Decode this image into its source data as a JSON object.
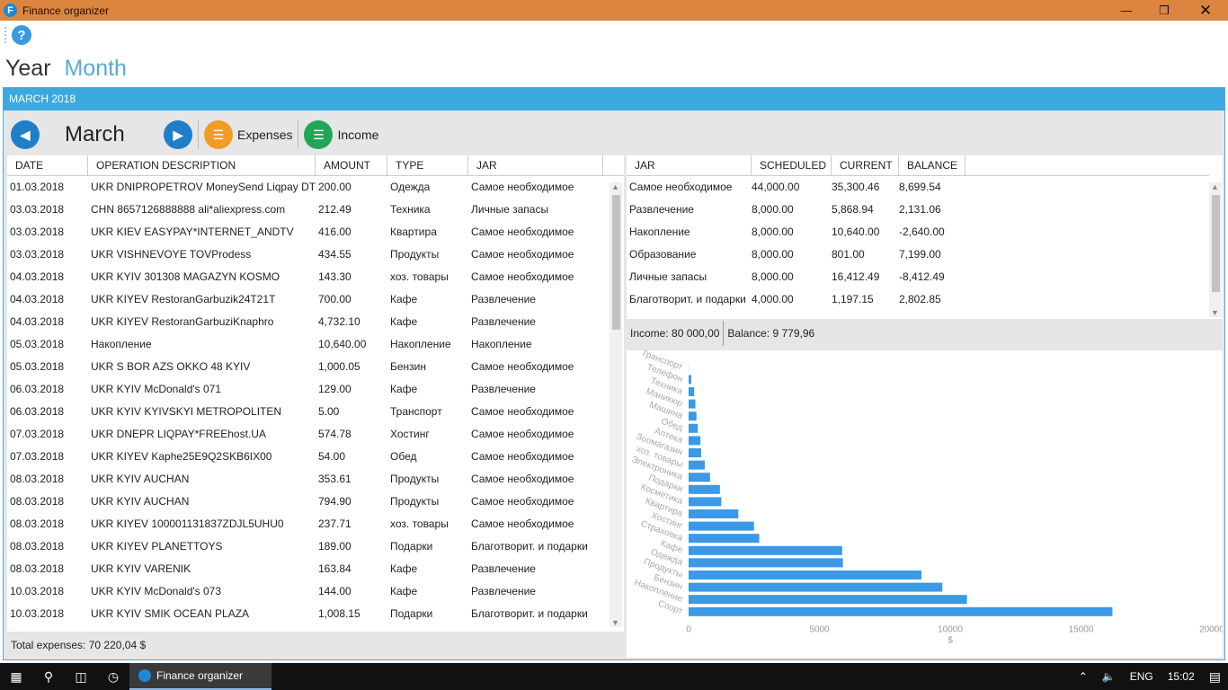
{
  "window": {
    "title": "Finance organizer"
  },
  "view_tabs": {
    "year": "Year",
    "month": "Month"
  },
  "panel_title": "MARCH 2018",
  "toolbar": {
    "month": "March",
    "expenses": "Expenses",
    "income": "Income"
  },
  "operations": {
    "headers": [
      "DATE",
      "OPERATION DESCRIPTION",
      "AMOUNT",
      "TYPE",
      "JAR"
    ],
    "rows": [
      [
        "01.03.2018",
        "UKR DNIPROPETROV MoneySend Liqpay DT",
        "200.00",
        "Одежда",
        "Самое необходимое"
      ],
      [
        "03.03.2018",
        "CHN 8657126888888 ali*aliexpress.com",
        "212.49",
        "Техника",
        "Личные запасы"
      ],
      [
        "03.03.2018",
        "UKR KIEV EASYPAY*INTERNET_ANDTV",
        "416.00",
        "Квартира",
        "Самое необходимое"
      ],
      [
        "03.03.2018",
        "UKR VISHNEVOYE TOVProdess",
        "434.55",
        "Продукты",
        "Самое необходимое"
      ],
      [
        "04.03.2018",
        "UKR KYIV 301308 MAGAZYN KOSMO",
        "143.30",
        "хоз. товары",
        "Самое необходимое"
      ],
      [
        "04.03.2018",
        "UKR KIYEV RestoranGarbuzik24T21T",
        "700.00",
        "Кафе",
        "Развлечение"
      ],
      [
        "04.03.2018",
        "UKR KIYEV RestoranGarbuziKnaphro",
        "4,732.10",
        "Кафе",
        "Развлечение"
      ],
      [
        "05.03.2018",
        "Накопление",
        "10,640.00",
        "Накопление",
        "Накопление"
      ],
      [
        "05.03.2018",
        "UKR S BOR AZS OKKO 48 KYIV",
        "1,000.05",
        "Бензин",
        "Самое необходимое"
      ],
      [
        "06.03.2018",
        "UKR KYIV McDonald's 071",
        "129.00",
        "Кафе",
        "Развлечение"
      ],
      [
        "06.03.2018",
        "UKR KYIV KYIVSKYI METROPOLITEN",
        "5.00",
        "Транспорт",
        "Самое необходимое"
      ],
      [
        "07.03.2018",
        "UKR DNEPR LIQPAY*FREEhost.UA",
        "574.78",
        "Хостинг",
        "Самое необходимое"
      ],
      [
        "07.03.2018",
        "UKR KIYEV Kaphe25E9Q2SKB6IX00",
        "54.00",
        "Обед",
        "Самое необходимое"
      ],
      [
        "08.03.2018",
        "UKR KYIV AUCHAN",
        "353.61",
        "Продукты",
        "Самое необходимое"
      ],
      [
        "08.03.2018",
        "UKR KYIV AUCHAN",
        "794.90",
        "Продукты",
        "Самое необходимое"
      ],
      [
        "08.03.2018",
        "UKR KIYEV 100001131837ZDJL5UHU0",
        "237.71",
        "хоз. товары",
        "Самое необходимое"
      ],
      [
        "08.03.2018",
        "UKR KIYEV PLANETTOYS",
        "189.00",
        "Подарки",
        "Благотворит. и подарки"
      ],
      [
        "08.03.2018",
        "UKR KYIV VARENIK",
        "163.84",
        "Кафе",
        "Развлечение"
      ],
      [
        "10.03.2018",
        "UKR KYIV McDonald's 073",
        "144.00",
        "Кафе",
        "Развлечение"
      ],
      [
        "10.03.2018",
        "UKR KYIV SMIK OCEAN PLAZA",
        "1,008.15",
        "Подарки",
        "Благотворит. и подарки"
      ]
    ],
    "total_label": "Total expenses:",
    "total_value": "70 220,04",
    "total_currency": "$"
  },
  "jars": {
    "headers": [
      "JAR",
      "SCHEDULED",
      "CURRENT",
      "BALANCE"
    ],
    "rows": [
      [
        "Самое необходимое",
        "44,000.00",
        "35,300.46",
        "8,699.54"
      ],
      [
        "Развлечение",
        "8,000.00",
        "5,868.94",
        "2,131.06"
      ],
      [
        "Накопление",
        "8,000.00",
        "10,640.00",
        "-2,640.00"
      ],
      [
        "Образование",
        "8,000.00",
        "801.00",
        "7,199.00"
      ],
      [
        "Личные запасы",
        "8,000.00",
        "16,412.49",
        "-8,412.49"
      ],
      [
        "Благотворит. и подарки",
        "4,000.00",
        "1,197.15",
        "2,802.85"
      ]
    ],
    "income_label": "Income:",
    "income_value": "80 000,00",
    "balance_label": "Balance:",
    "balance_value": "9 779,96"
  },
  "chart_data": {
    "type": "bar",
    "orientation": "horizontal",
    "categories": [
      "Транспорт",
      "Телефон",
      "Техника",
      "Маникюр",
      "Машина",
      "Обед",
      "Аптека",
      "Зоомагазин",
      "хоз. товары",
      "Электроника",
      "Подарки",
      "Косметика",
      "Квартира",
      "Хостинг",
      "Страховка",
      "Кафе",
      "Одежда",
      "Продукты",
      "Бензин",
      "Накопление",
      "Спорт"
    ],
    "values": [
      5,
      100,
      212,
      260,
      300,
      350,
      450,
      480,
      620,
      820,
      1197,
      1250,
      1900,
      2500,
      2700,
      5870,
      5900,
      8900,
      9700,
      10640,
      16200
    ],
    "xlabel": "$",
    "xlim": [
      0,
      20000
    ],
    "xticks": [
      "0",
      "5000",
      "10000",
      "15000",
      "20000"
    ],
    "bar_color": "#3b99e6"
  },
  "taskbar": {
    "app": "Finance organizer",
    "lang": "ENG",
    "time": "15:02"
  },
  "colors": {
    "titlebar": "#dc8541",
    "accent": "#3ca8e0",
    "expenses": "#f39c24",
    "income": "#22a559"
  }
}
